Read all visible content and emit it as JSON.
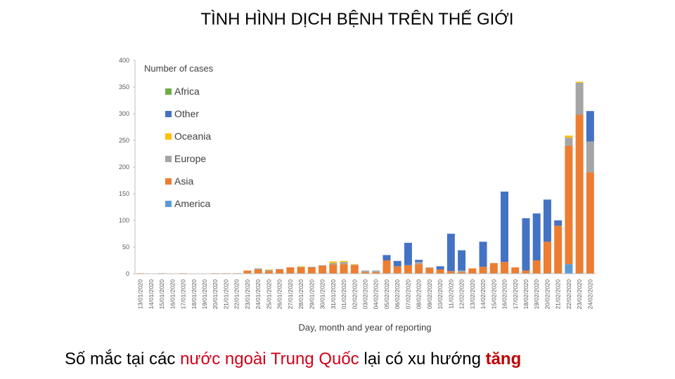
{
  "slide": {
    "title": "TÌNH HÌNH DỊCH BỆNH TRÊN THẾ GIỚI",
    "caption_part1": "Số mắc tại các ",
    "caption_part2": "nước ngoài Trung Quốc",
    "caption_part3": " lại có xu hướng ",
    "caption_part4": "tăng",
    "caption_highlight_color": "#d0021b",
    "caption_bold_color": "#c00000"
  },
  "chart_data": {
    "type": "bar",
    "stacked": true,
    "title": "",
    "legend_title": "Number of cases",
    "legend_position": "top-left",
    "xlabel": "Day, month and year of reporting",
    "ylabel": "",
    "ylim": [
      0,
      400
    ],
    "yticks": [
      0,
      50,
      100,
      150,
      200,
      250,
      300,
      350,
      400
    ],
    "grid": false,
    "categories": [
      "13/01/2020",
      "14/01/2020",
      "15/01/2020",
      "16/01/2020",
      "17/01/2020",
      "18/01/2020",
      "19/01/2020",
      "20/01/2020",
      "21/01/2020",
      "22/01/2020",
      "23/01/2020",
      "24/01/2020",
      "25/01/2020",
      "26/01/2020",
      "27/01/2020",
      "28/01/2020",
      "29/01/2020",
      "30/01/2020",
      "31/01/2020",
      "01/02/2020",
      "02/02/2020",
      "03/02/2020",
      "04/02/2020",
      "05/02/2020",
      "06/02/2020",
      "07/02/2020",
      "08/02/2020",
      "09/02/2020",
      "10/02/2020",
      "11/02/2020",
      "12/02/2020",
      "13/02/2020",
      "14/02/2020",
      "15/02/2020",
      "16/02/2020",
      "17/02/2020",
      "18/02/2020",
      "19/02/2020",
      "20/02/2020",
      "21/02/2020",
      "22/02/2020",
      "23/02/2020",
      "24/02/2020"
    ],
    "series": [
      {
        "name": "America",
        "color": "#5b9bd5",
        "values": [
          0,
          0,
          0,
          0,
          0,
          0,
          0,
          0,
          0,
          0,
          0,
          0,
          0,
          0,
          0,
          0,
          0,
          0,
          0,
          0,
          0,
          0,
          0,
          0,
          0,
          0,
          0,
          0,
          0,
          0,
          0,
          0,
          0,
          0,
          0,
          0,
          0,
          0,
          0,
          0,
          18,
          0,
          0
        ]
      },
      {
        "name": "Asia",
        "color": "#ed7d31",
        "values": [
          1,
          0,
          1,
          0,
          1,
          0,
          0,
          1,
          1,
          1,
          6,
          8,
          5,
          8,
          12,
          12,
          12,
          15,
          17,
          18,
          16,
          3,
          3,
          25,
          14,
          16,
          18,
          11,
          8,
          5,
          3,
          10,
          13,
          20,
          22,
          12,
          6,
          25,
          60,
          90,
          222,
          298,
          190
        ]
      },
      {
        "name": "Europe",
        "color": "#a5a5a5",
        "values": [
          0,
          0,
          0,
          0,
          0,
          0,
          0,
          0,
          0,
          0,
          0,
          2,
          2,
          1,
          0,
          1,
          1,
          1,
          3,
          4,
          1,
          3,
          3,
          0,
          0,
          0,
          4,
          1,
          0,
          0,
          3,
          0,
          0,
          0,
          0,
          0,
          0,
          0,
          0,
          0,
          15,
          60,
          58
        ]
      },
      {
        "name": "Oceania",
        "color": "#ffc000",
        "values": [
          0,
          0,
          0,
          0,
          0,
          0,
          0,
          0,
          0,
          0,
          0,
          0,
          1,
          0,
          0,
          1,
          0,
          0,
          3,
          2,
          1,
          0,
          0,
          0,
          0,
          0,
          0,
          0,
          0,
          0,
          0,
          0,
          0,
          0,
          0,
          0,
          0,
          0,
          0,
          0,
          4,
          2,
          0
        ]
      },
      {
        "name": "Other",
        "color": "#4472c4",
        "values": [
          0,
          0,
          0,
          0,
          0,
          0,
          0,
          0,
          0,
          0,
          0,
          0,
          0,
          0,
          0,
          0,
          0,
          0,
          0,
          0,
          0,
          0,
          0,
          10,
          10,
          42,
          4,
          0,
          6,
          70,
          38,
          0,
          47,
          0,
          132,
          0,
          98,
          88,
          79,
          10,
          0,
          0,
          57
        ]
      },
      {
        "name": "Africa",
        "color": "#70ad47",
        "values": [
          0,
          0,
          0,
          0,
          0,
          0,
          0,
          0,
          0,
          0,
          0,
          0,
          0,
          0,
          0,
          0,
          0,
          0,
          0,
          0,
          0,
          0,
          0,
          0,
          0,
          0,
          0,
          0,
          0,
          0,
          0,
          0,
          0,
          0,
          0,
          0,
          0,
          0,
          0,
          0,
          0,
          0,
          0
        ]
      }
    ],
    "legend_order": [
      "Africa",
      "Other",
      "Oceania",
      "Europe",
      "Asia",
      "America"
    ]
  }
}
